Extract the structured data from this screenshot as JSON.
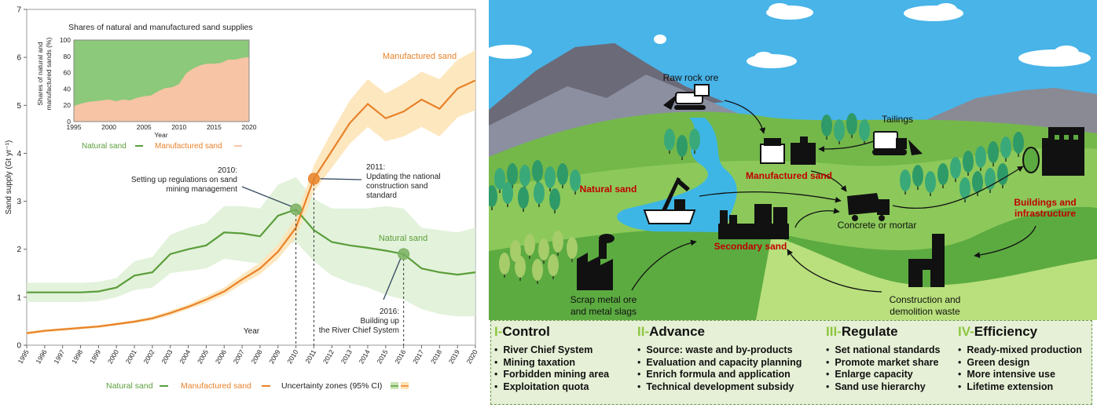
{
  "chart_data": [
    {
      "type": "line",
      "ylabel": "Sand supply (Gt yr⁻¹)",
      "xlabel": "Year",
      "ylim": [
        0,
        7
      ],
      "xlim": [
        1995,
        2020
      ],
      "y_ticks": [
        0,
        1,
        2,
        3,
        4,
        5,
        6,
        7
      ],
      "x_ticks": [
        1995,
        1996,
        1997,
        1998,
        1999,
        2000,
        2001,
        2002,
        2003,
        2004,
        2005,
        2006,
        2007,
        2008,
        2009,
        2010,
        2011,
        2012,
        2013,
        2014,
        2015,
        2016,
        2017,
        2018,
        2019,
        2020
      ],
      "x": [
        1995,
        1996,
        1997,
        1998,
        1999,
        2000,
        2001,
        2002,
        2003,
        2004,
        2005,
        2006,
        2007,
        2008,
        2009,
        2010,
        2011,
        2012,
        2013,
        2014,
        2015,
        2016,
        2017,
        2018,
        2019,
        2020
      ],
      "series": [
        {
          "name": "Natural sand",
          "color": "#5a9e3a",
          "values": [
            1.1,
            1.1,
            1.1,
            1.1,
            1.12,
            1.2,
            1.45,
            1.52,
            1.9,
            2.0,
            2.08,
            2.35,
            2.33,
            2.27,
            2.7,
            2.83,
            2.4,
            2.15,
            2.08,
            2.03,
            1.97,
            1.9,
            1.6,
            1.52,
            1.47,
            1.52
          ],
          "ci_low": [
            0.9,
            0.9,
            0.9,
            0.9,
            0.92,
            1.0,
            1.15,
            1.2,
            1.5,
            1.55,
            1.6,
            1.8,
            1.75,
            1.7,
            2.05,
            2.15,
            1.75,
            1.45,
            1.3,
            1.2,
            1.05,
            0.95,
            0.75,
            0.65,
            0.6,
            0.6
          ],
          "ci_high": [
            1.3,
            1.3,
            1.3,
            1.3,
            1.32,
            1.4,
            1.75,
            1.84,
            2.3,
            2.45,
            2.55,
            2.9,
            2.9,
            2.85,
            3.35,
            3.5,
            3.05,
            2.85,
            2.85,
            2.85,
            2.9,
            2.85,
            2.45,
            2.4,
            2.35,
            2.45
          ],
          "label": "Natural sand"
        },
        {
          "name": "Manufactured sand",
          "color": "#e8822a",
          "values": [
            0.25,
            0.3,
            0.33,
            0.36,
            0.39,
            0.44,
            0.49,
            0.56,
            0.67,
            0.8,
            0.95,
            1.12,
            1.37,
            1.6,
            1.95,
            2.45,
            3.47,
            4.05,
            4.63,
            5.03,
            4.73,
            4.87,
            5.12,
            4.93,
            5.35,
            5.52
          ],
          "ci_low": [
            0.22,
            0.27,
            0.3,
            0.33,
            0.36,
            0.41,
            0.46,
            0.52,
            0.62,
            0.75,
            0.88,
            1.04,
            1.27,
            1.48,
            1.8,
            2.25,
            3.2,
            3.7,
            4.2,
            4.55,
            4.25,
            4.35,
            4.55,
            4.35,
            4.75,
            4.9
          ],
          "ci_high": [
            0.28,
            0.33,
            0.36,
            0.39,
            0.42,
            0.47,
            0.52,
            0.6,
            0.72,
            0.85,
            1.02,
            1.2,
            1.47,
            1.72,
            2.1,
            2.65,
            3.75,
            4.45,
            5.1,
            5.55,
            5.25,
            5.45,
            5.7,
            5.55,
            5.95,
            6.15
          ],
          "label": "Manufactured sand"
        }
      ],
      "legend": [
        "Natural sand",
        "Manufactured sand",
        "Uncertainty zones (95% CI)"
      ],
      "legend_placement": "bottom",
      "highlights": [
        {
          "x": 2010,
          "y": 2.83,
          "series": "Natural sand",
          "label_lines": [
            "2010:",
            "Setting up regulations on sand",
            "mining management"
          ]
        },
        {
          "x": 2011,
          "y": 3.47,
          "series": "Manufactured sand",
          "label_lines": [
            "2011:",
            "Updating the national",
            "construction sand",
            "standard"
          ]
        },
        {
          "x": 2016,
          "y": 1.9,
          "series": "Natural sand",
          "label_lines": [
            "2016:",
            "Building up",
            "the River Chief System"
          ]
        }
      ]
    },
    {
      "type": "area",
      "title": "Shares of natural and manufactured sand supplies",
      "ylabel": "Shares of natural and manufactured sands (%)",
      "xlabel": "Year",
      "ylim": [
        0,
        100
      ],
      "xlim": [
        1995,
        2020
      ],
      "y_ticks": [
        0,
        20,
        40,
        60,
        80,
        100
      ],
      "x_ticks": [
        1995,
        2000,
        2005,
        2010,
        2015,
        2020
      ],
      "x": [
        1995,
        1996,
        1997,
        1998,
        1999,
        2000,
        2001,
        2002,
        2003,
        2004,
        2005,
        2006,
        2007,
        2008,
        2009,
        2010,
        2011,
        2012,
        2013,
        2014,
        2015,
        2016,
        2017,
        2018,
        2019,
        2020
      ],
      "manufactured_share": [
        19,
        22,
        24,
        25,
        26,
        27,
        25,
        27,
        26,
        29,
        31,
        32,
        37,
        41,
        42,
        46,
        59,
        65,
        69,
        71,
        71,
        72,
        76,
        76,
        78,
        79
      ],
      "natural_color": "#8cc97a",
      "manufactured_color": "#f7c4a5",
      "legend": [
        "Natural sand",
        "Manufactured sand"
      ]
    }
  ],
  "main_text": {
    "manufactured_label": "Manufactured sand",
    "natural_label": "Natural sand",
    "legend_natural": "Natural sand",
    "legend_manufactured": "Manufactured sand",
    "legend_ci": "Uncertainty zones (95% CI)",
    "inset_legend_natural": "Natural sand",
    "inset_legend_manufactured": "Manufactured sand"
  },
  "diagram": {
    "raw_rock_ore": "Raw rock ore",
    "tailings": "Tailings",
    "manufactured_sand": "Manufactured sand",
    "natural_sand": "Natural sand",
    "concrete": "Concrete or mortar",
    "buildings_l1": "Buildings and",
    "buildings_l2": "infrastructure",
    "secondary_sand": "Secondary sand",
    "scrap_l1": "Scrap metal ore",
    "scrap_l2": "and metal slags",
    "cdw_l1": "Construction and",
    "cdw_l2": "demolition waste",
    "red_label_color": "#c00000"
  },
  "policy": {
    "columns": [
      {
        "num": "I-",
        "title": "Control",
        "items": [
          "River Chief System",
          "Mining taxation",
          "Forbidden mining area",
          "Exploitation quota"
        ]
      },
      {
        "num": "II-",
        "title": "Advance",
        "items": [
          "Source: waste and by-products",
          "Evaluation and capacity planning",
          "Enrich formula and application",
          "Technical development subsidy"
        ]
      },
      {
        "num": "III-",
        "title": "Regulate",
        "items": [
          "Set national standards",
          "Promote market share",
          "Enlarge capacity",
          "Sand use hierarchy"
        ]
      },
      {
        "num": "IV-",
        "title": "Efficiency",
        "items": [
          "Ready-mixed production",
          "Green design",
          "More intensive use",
          "Lifetime extension"
        ]
      }
    ]
  }
}
